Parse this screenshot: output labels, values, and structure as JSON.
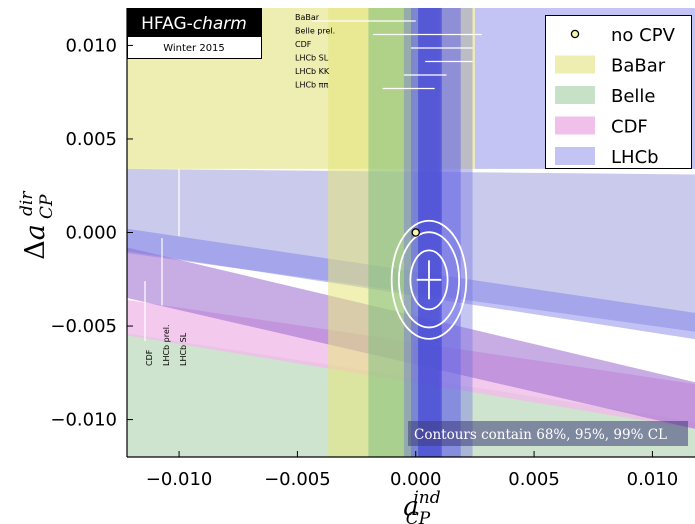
{
  "chart_data": {
    "type": "scatter",
    "xlabel": "a_CP^ind",
    "ylabel": "Δa_CP^dir",
    "xlim": [
      -0.0122,
      0.0118
    ],
    "ylim": [
      -0.012,
      0.012
    ],
    "x_ticks": [
      {
        "value": -0.01,
        "label": "−0.010"
      },
      {
        "value": -0.005,
        "label": "−0.005"
      },
      {
        "value": 0.0,
        "label": "0.000"
      },
      {
        "value": 0.005,
        "label": "0.005"
      },
      {
        "value": 0.01,
        "label": "0.010"
      }
    ],
    "y_ticks": [
      {
        "value": 0.01,
        "label": "0.010"
      },
      {
        "value": 0.005,
        "label": "0.005"
      },
      {
        "value": 0.0,
        "label": "0.000"
      },
      {
        "value": -0.005,
        "label": "−0.005"
      },
      {
        "value": -0.01,
        "label": "−0.010"
      }
    ],
    "banner": {
      "title": "HFAG-",
      "title_italic": "charm",
      "subtitle": "Winter 2015"
    },
    "legend": {
      "placement": "top-right",
      "entries": [
        {
          "label": "no CPV",
          "kind": "marker",
          "color": "#f5f5b0"
        },
        {
          "label": "BaBar",
          "kind": "patch",
          "color": "#eeeeb2"
        },
        {
          "label": "Belle",
          "kind": "patch",
          "color": "#c7e1c7"
        },
        {
          "label": "CDF",
          "kind": "patch",
          "color": "#f0c0ea"
        },
        {
          "label": "LHCb",
          "kind": "patch",
          "color": "#c4c4f4"
        }
      ]
    },
    "vertical_bands": [
      {
        "experiment": "BaBar",
        "color": "#e6e67a",
        "opacity": 0.55,
        "x": [
          -0.0037,
          -0.0001
        ]
      },
      {
        "experiment": "Belle",
        "color": "#7fbf7f",
        "opacity": 0.55,
        "x": [
          -0.002,
          0.001
        ]
      },
      {
        "experiment": "LHCb",
        "color": "#7070e0",
        "opacity": 0.4,
        "x": [
          -0.0005,
          0.0024
        ]
      },
      {
        "experiment": "LHCb",
        "color": "#6a6ae6",
        "opacity": 0.55,
        "x": [
          -0.0002,
          0.0019
        ]
      },
      {
        "experiment": "LHCb",
        "color": "#3a3ad8",
        "opacity": 0.6,
        "x": [
          0.0001,
          0.0011
        ]
      }
    ],
    "diagonal_bands": [
      {
        "experiment": "BaBar",
        "color": "#eeeeb2",
        "opacity": 1.0,
        "polygon": [
          [
            -0.0122,
            0.012
          ],
          [
            0.0118,
            0.012
          ],
          [
            0.0118,
            0.0034
          ],
          [
            -0.0122,
            0.0034
          ]
        ]
      },
      {
        "experiment": "LHCb",
        "color": "#c4c4f4",
        "opacity": 1.0,
        "polygon": [
          [
            0.0025,
            0.012
          ],
          [
            0.0118,
            0.012
          ],
          [
            0.0118,
            0.0034
          ],
          [
            0.0025,
            0.0034
          ]
        ]
      },
      {
        "experiment": "Belle",
        "color": "#cfe4cf",
        "opacity": 1.0,
        "polygon": [
          [
            -0.0122,
            -0.0054
          ],
          [
            0.0118,
            -0.0101
          ],
          [
            0.0118,
            -0.012
          ],
          [
            -0.0122,
            -0.012
          ]
        ]
      },
      {
        "experiment": "CDF",
        "color": "#f0bce8",
        "opacity": 0.8,
        "polygon": [
          [
            -0.0122,
            -0.0036
          ],
          [
            0.0118,
            -0.0081
          ],
          [
            0.0118,
            -0.0105
          ],
          [
            -0.0122,
            -0.0055
          ]
        ]
      },
      {
        "experiment": "LHCb",
        "color": "#8a8ad8",
        "opacity": 0.45,
        "polygon": [
          [
            -0.0122,
            0.0034
          ],
          [
            0.0118,
            0.0031
          ],
          [
            0.0118,
            -0.0053
          ],
          [
            -0.0122,
            -0.0011
          ]
        ]
      },
      {
        "experiment": "LHCb",
        "color": "#9a6ad0",
        "opacity": 0.55,
        "polygon": [
          [
            -0.0122,
            -0.0008
          ],
          [
            0.0118,
            -0.008
          ],
          [
            0.0118,
            -0.0105
          ],
          [
            -0.0122,
            -0.0035
          ]
        ]
      },
      {
        "experiment": "LHCb",
        "color": "#7777e8",
        "opacity": 0.45,
        "polygon": [
          [
            -0.0122,
            0.0002
          ],
          [
            0.0118,
            -0.0043
          ],
          [
            0.0118,
            -0.0057
          ],
          [
            -0.0122,
            -0.001
          ]
        ]
      }
    ],
    "horizontal_labels": [
      {
        "label": "BaBar",
        "x_center": -0.0022,
        "halfwidth": 0.0022
      },
      {
        "label": "Belle prel.",
        "x_center": 0.0005,
        "halfwidth": 0.0023
      },
      {
        "label": "CDF",
        "x_center": 0.0011,
        "halfwidth": 0.0013
      },
      {
        "label": "LHCb SL",
        "x_center": 0.0014,
        "halfwidth": 0.001
      },
      {
        "label": "LHCb KK",
        "x_center": 0.0004,
        "halfwidth": 0.0009
      },
      {
        "label": "LHCb ππ",
        "x_center": -0.0003,
        "halfwidth": 0.0011
      }
    ],
    "vertical_labels": [
      {
        "label": "CDF",
        "y_center": -0.0042,
        "halfwidth": 0.0016
      },
      {
        "label": "LHCb prel.",
        "y_center": -0.0021,
        "halfwidth": 0.0018
      },
      {
        "label": "LHCb SL",
        "y_center": 0.0016,
        "halfwidth": 0.0018
      }
    ],
    "contour_center": [
      0.00056,
      -0.00253
    ],
    "contour_sigma": [
      0.00052,
      0.00104
    ],
    "contour_levels": [
      {
        "cl": "68%",
        "scale": 1.515
      },
      {
        "cl": "95%",
        "scale": 2.448
      },
      {
        "cl": "99%",
        "scale": 3.035
      }
    ],
    "best_fit_error": [
      0.00052,
      0.00104
    ],
    "no_cpv_point": [
      0.0,
      0.0
    ],
    "note": {
      "prefix": "Contours contain ",
      "levels": "68%, 95%, 99%",
      "suffix": " CL"
    }
  }
}
